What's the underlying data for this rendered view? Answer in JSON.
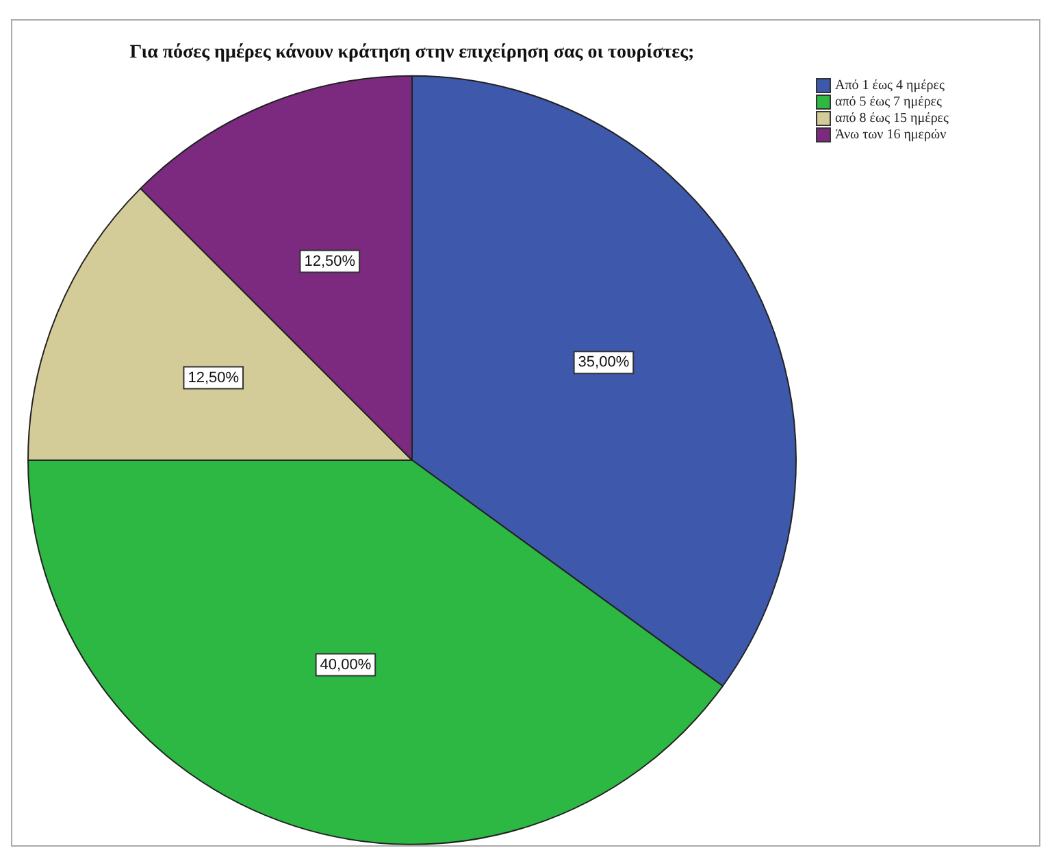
{
  "chart_data": {
    "type": "pie",
    "title": "Για πόσες ημέρες κάνουν κράτηση στην επιχείρηση σας οι τουρίστες;",
    "categories": [
      "Από 1 έως 4 ημέρες",
      "από 5 έως 7 ημέρες",
      "από 8 έως 15 ημέρες",
      "Άνω των 16 ημερών"
    ],
    "values": [
      35,
      40,
      12.5,
      12.5
    ],
    "colors": [
      "#3e58ab",
      "#2db844",
      "#d4cc98",
      "#7b2a7f"
    ],
    "value_labels": [
      "35,00%",
      "40,00%",
      "12,50%",
      "12,50%"
    ],
    "legend": "top right"
  }
}
